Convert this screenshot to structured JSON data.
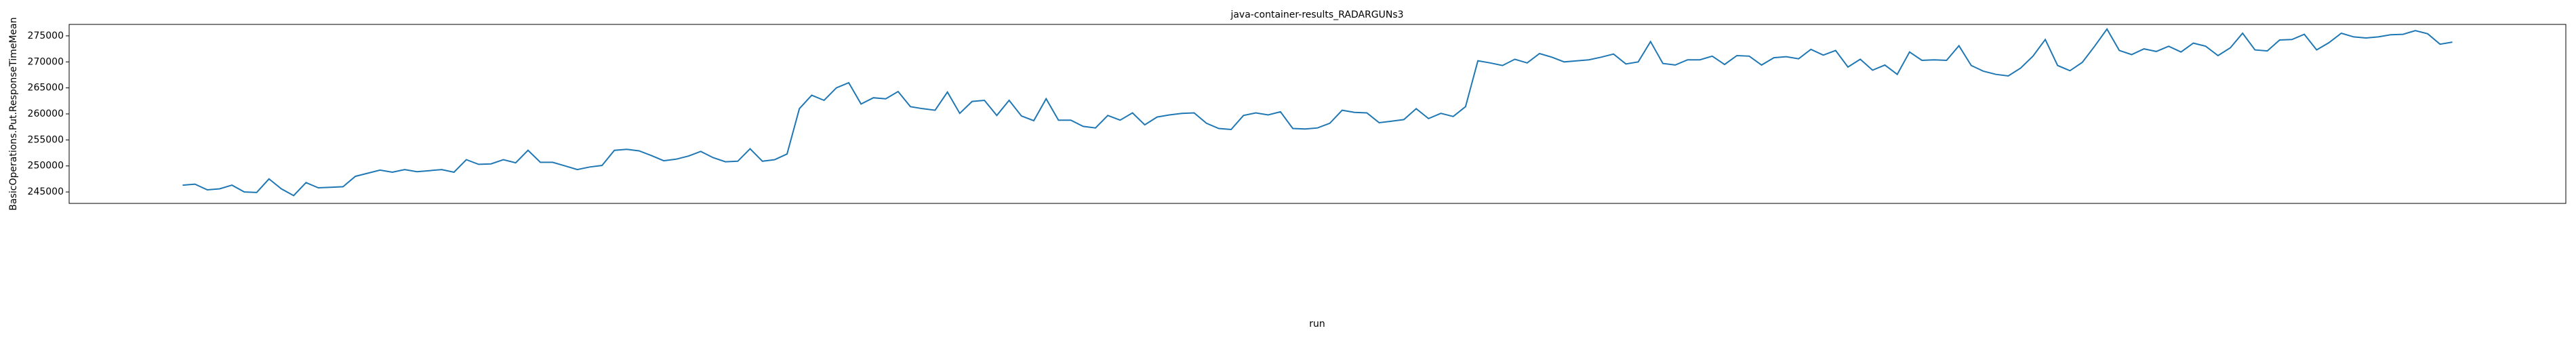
{
  "chart_data": {
    "type": "line",
    "title": "java-container-results_RADARGUNs3",
    "x_label": "run",
    "y_label": "BasicOperations.Put.ResponseTimeMean",
    "color": "#1f77b4",
    "ylim": [
      242800,
      277200
    ],
    "yticks": [
      245000,
      250000,
      255000,
      260000,
      265000,
      270000,
      275000
    ],
    "values": [
      246300,
      246500,
      245400,
      245600,
      246300,
      245000,
      244900,
      247500,
      245600,
      244300,
      246800,
      245800,
      245900,
      246000,
      248000,
      248600,
      249200,
      248800,
      249300,
      248900,
      249100,
      249300,
      248800,
      251200,
      250300,
      250400,
      251200,
      250600,
      253000,
      250700,
      250700,
      250000,
      249300,
      249800,
      250100,
      253000,
      253200,
      252900,
      252000,
      251000,
      251300,
      251900,
      252800,
      251600,
      250800,
      250900,
      253300,
      250900,
      251200,
      252300,
      261000,
      263600,
      262600,
      265000,
      266000,
      261900,
      263100,
      262900,
      264300,
      261400,
      261000,
      260700,
      264200,
      260100,
      262400,
      262600,
      259700,
      262600,
      259600,
      258700,
      262900,
      258800,
      258800,
      257600,
      257300,
      259700,
      258800,
      260200,
      257900,
      259400,
      259800,
      260100,
      260200,
      258200,
      257200,
      257000,
      259700,
      260200,
      259800,
      260400,
      257200,
      257100,
      257300,
      258200,
      260700,
      260300,
      260200,
      258300,
      258600,
      258900,
      261000,
      259100,
      260100,
      259500,
      261400,
      270200,
      269800,
      269300,
      270500,
      269800,
      271600,
      270900,
      270000,
      270200,
      270400,
      270900,
      271500,
      269600,
      270000,
      273900,
      269700,
      269400,
      270400,
      270400,
      271100,
      269500,
      271200,
      271100,
      269400,
      270800,
      271000,
      270600,
      272400,
      271300,
      272200,
      269000,
      270500,
      268400,
      269400,
      267600,
      271900,
      270300,
      270400,
      270300,
      273100,
      269300,
      268200,
      267600,
      267300,
      268800,
      271100,
      274300,
      269300,
      268300,
      269900,
      273000,
      276300,
      272200,
      271400,
      272500,
      272000,
      273000,
      271900,
      273600,
      273000,
      271200,
      272700,
      275500,
      272300,
      272100,
      274200,
      274300,
      275300,
      272300,
      273700,
      275500,
      274800,
      274600,
      274800,
      275200,
      275300,
      276000,
      275400,
      273400,
      273800
    ]
  }
}
